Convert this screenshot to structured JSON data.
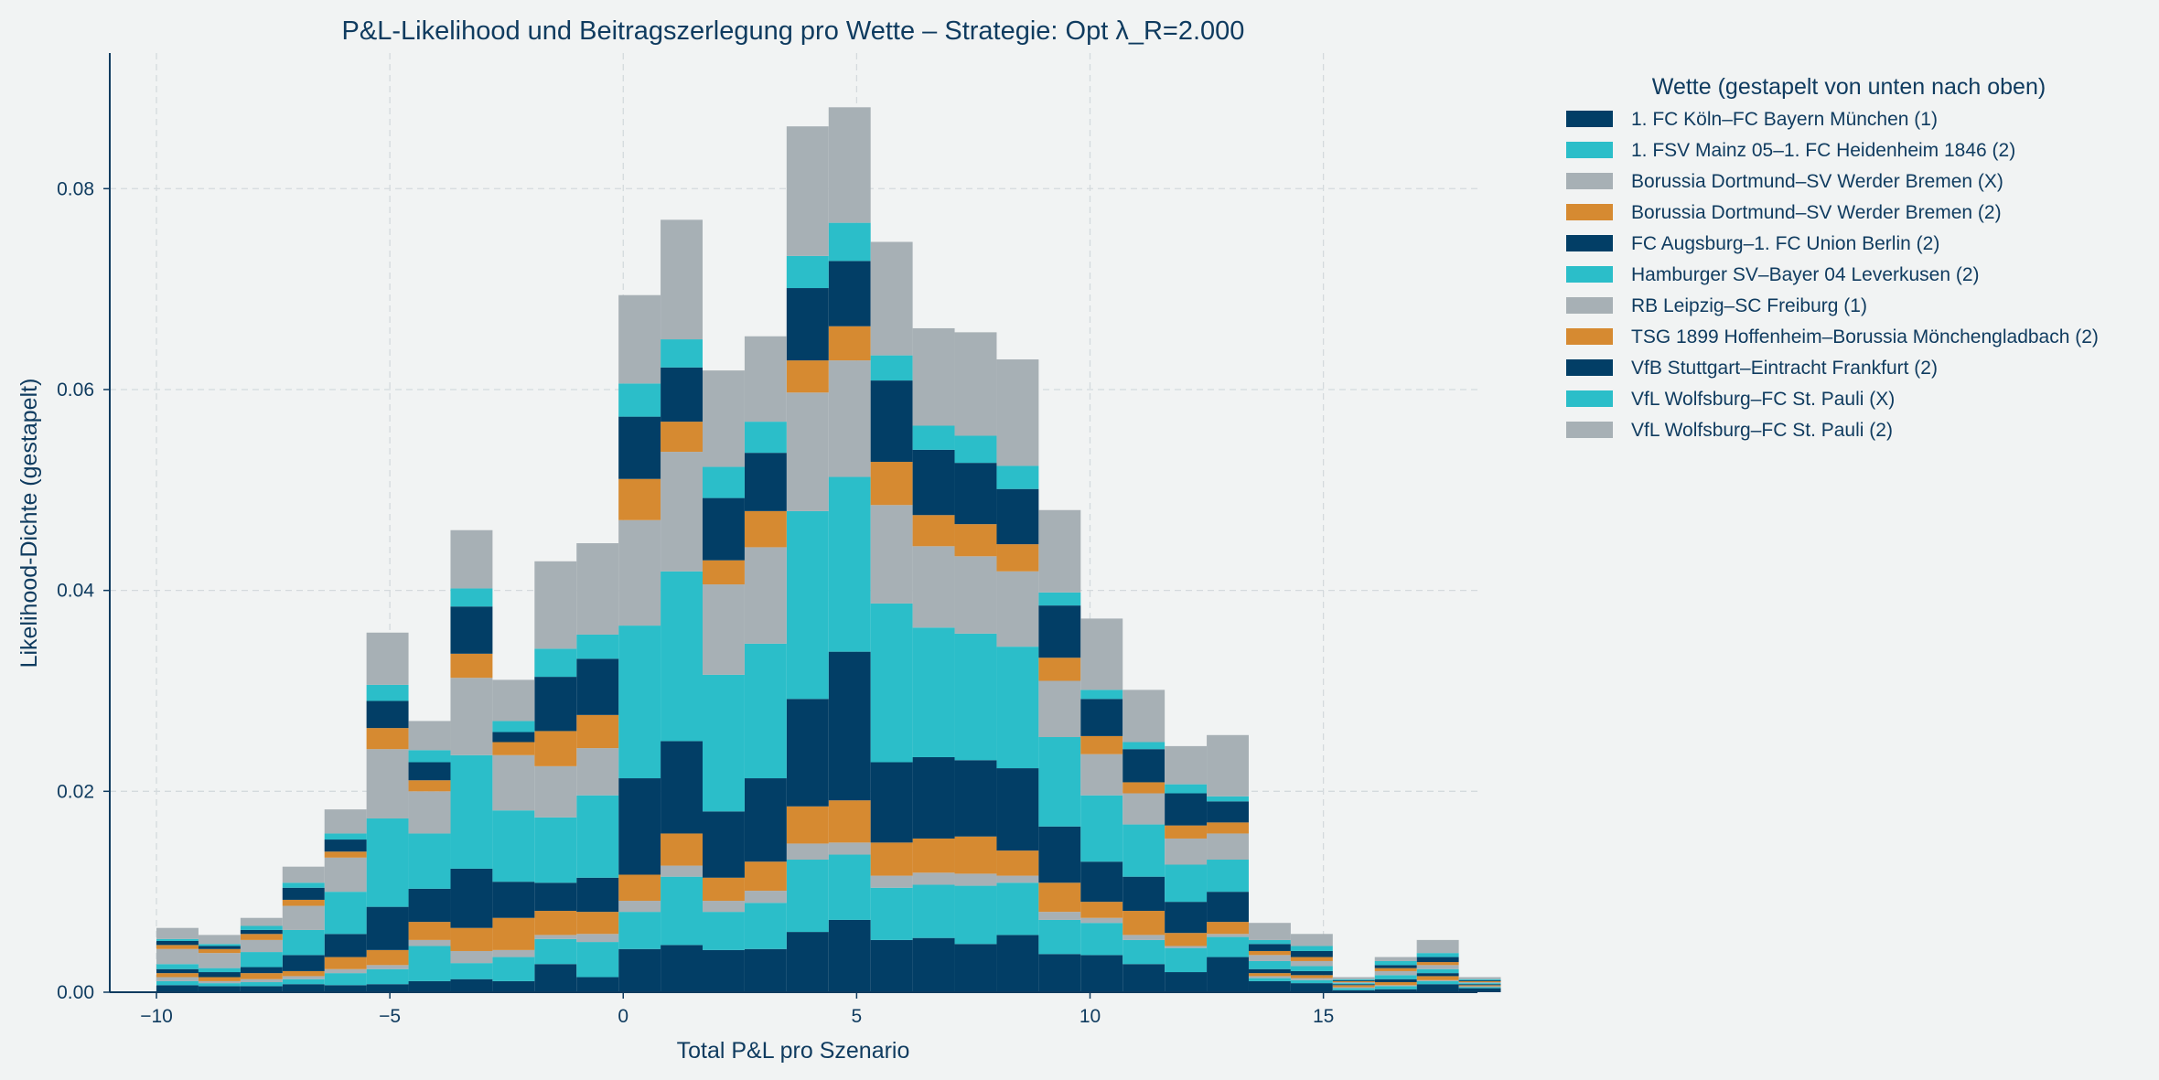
{
  "chart_data": {
    "type": "bar",
    "stacked": true,
    "title": "P&L-Likelihood und Beitragszerlegung pro Wette – Strategie: Opt λ_R=2.000",
    "xlabel": "Total P&L pro Szenario",
    "ylabel": "Likelihood-Dichte (gestapelt)",
    "xlim": [
      -11,
      18.3
    ],
    "ylim": [
      0,
      0.0935
    ],
    "xticks": [
      -10,
      -5,
      0,
      5,
      10,
      15
    ],
    "xtick_labels": [
      "−10",
      "−5",
      "0",
      "5",
      "10",
      "15"
    ],
    "yticks": [
      0.0,
      0.02,
      0.04,
      0.06,
      0.08
    ],
    "ytick_labels": [
      "0.00",
      "0.02",
      "0.04",
      "0.06",
      "0.08"
    ],
    "grid": true,
    "legend_title": "Wette (gestapelt von unten nach oben)",
    "legend_position": "outside-right",
    "bin_width": 0.9,
    "bin_edges_start": -10,
    "series": [
      {
        "name": "1. FC Köln–FC Bayern München (1)",
        "color": "#023e66",
        "values": [
          0.0007,
          0.0006,
          0.0006,
          0.0008,
          0.0007,
          0.0008,
          0.0011,
          0.0013,
          0.0011,
          0.0028,
          0.0015,
          0.0043,
          0.0047,
          0.0042,
          0.0043,
          0.006,
          0.0072,
          0.0052,
          0.0054,
          0.0048,
          0.0057,
          0.0038,
          0.0037,
          0.0028,
          0.002,
          0.0035,
          0.0011,
          0.0009,
          0.0002,
          0.0003,
          0.0008,
          0.0004
        ]
      },
      {
        "name": "1. FSV Mainz 05–1. FC Heidenheim 1846 (2)",
        "color": "#2bbec9",
        "values": [
          0.0004,
          0.0003,
          0.0004,
          0.0005,
          0.0012,
          0.0015,
          0.0035,
          0.0016,
          0.0024,
          0.0025,
          0.0035,
          0.0037,
          0.0068,
          0.0038,
          0.0046,
          0.0072,
          0.0065,
          0.0052,
          0.0053,
          0.0058,
          0.0052,
          0.0034,
          0.0032,
          0.0024,
          0.0024,
          0.002,
          0.0003,
          0.0003,
          0.0002,
          0.0003,
          0.0003,
          0.0001
        ]
      },
      {
        "name": "Borussia Dortmund–SV Werder Bremen (X)",
        "color": "#a7b0b5",
        "values": [
          0.0004,
          0.0002,
          0.0003,
          0.0003,
          0.0004,
          0.0004,
          0.0006,
          0.0012,
          0.0007,
          0.0004,
          0.0008,
          0.0011,
          0.0011,
          0.0011,
          0.0012,
          0.0016,
          0.0012,
          0.0012,
          0.0012,
          0.0012,
          0.0007,
          0.0008,
          0.0005,
          0.0005,
          0.0002,
          0.0003,
          0.0002,
          0.0002,
          0.0001,
          0.0001,
          0.0001,
          0.0001
        ]
      },
      {
        "name": "Borussia Dortmund–SV Werder Bremen (2)",
        "color": "#d68a31",
        "values": [
          0.0004,
          0.0004,
          0.0006,
          0.0005,
          0.0012,
          0.0015,
          0.0018,
          0.0023,
          0.0032,
          0.0024,
          0.0022,
          0.0026,
          0.0032,
          0.0023,
          0.0029,
          0.0037,
          0.0042,
          0.0033,
          0.0034,
          0.0037,
          0.0025,
          0.0029,
          0.0016,
          0.0024,
          0.0013,
          0.0012,
          0.0003,
          0.0003,
          0.0002,
          0.0003,
          0.0004,
          0.0001
        ]
      },
      {
        "name": "FC Augsburg–1. FC Union Berlin (2)",
        "color": "#023e66",
        "values": [
          0.0004,
          0.0005,
          0.0006,
          0.0016,
          0.0023,
          0.0043,
          0.0033,
          0.0059,
          0.0036,
          0.0028,
          0.0034,
          0.0096,
          0.0092,
          0.0066,
          0.0083,
          0.0107,
          0.0148,
          0.008,
          0.0081,
          0.0076,
          0.0082,
          0.0056,
          0.004,
          0.0034,
          0.0031,
          0.003,
          0.0004,
          0.0004,
          0.0001,
          0.0003,
          0.0003,
          0.0001
        ]
      },
      {
        "name": "Hamburger SV–Bayer 04 Leverkusen (2)",
        "color": "#2bbec9",
        "values": [
          0.0005,
          0.0004,
          0.0015,
          0.0025,
          0.0042,
          0.0088,
          0.0055,
          0.0113,
          0.0071,
          0.0065,
          0.0082,
          0.0152,
          0.0169,
          0.0136,
          0.0134,
          0.0187,
          0.0174,
          0.0158,
          0.0129,
          0.0126,
          0.0121,
          0.0089,
          0.0066,
          0.0052,
          0.0037,
          0.0032,
          0.0008,
          0.0005,
          0.0001,
          0.0004,
          0.0004,
          0.0001
        ]
      },
      {
        "name": "RB Leipzig–SC Freiburg (1)",
        "color": "#a7b0b5",
        "values": [
          0.0015,
          0.0015,
          0.0012,
          0.0024,
          0.0034,
          0.0069,
          0.0042,
          0.0077,
          0.0055,
          0.0051,
          0.0047,
          0.0105,
          0.0119,
          0.009,
          0.0096,
          0.0118,
          0.0116,
          0.0098,
          0.0081,
          0.0077,
          0.0075,
          0.0056,
          0.0041,
          0.0031,
          0.0026,
          0.0026,
          0.0006,
          0.0005,
          0.0001,
          0.0004,
          0.0004,
          0.0001
        ]
      },
      {
        "name": "TSG 1899 Hoffenheim–Borussia Mönchengladbach (2)",
        "color": "#d68a31",
        "values": [
          0.0004,
          0.0004,
          0.0006,
          0.0006,
          0.0006,
          0.0021,
          0.0011,
          0.0024,
          0.0013,
          0.0035,
          0.0033,
          0.0041,
          0.003,
          0.0024,
          0.0036,
          0.0032,
          0.0034,
          0.0043,
          0.0031,
          0.0032,
          0.0027,
          0.0023,
          0.0018,
          0.0011,
          0.0013,
          0.0011,
          0.0004,
          0.0004,
          0.0001,
          0.0003,
          0.0003,
          0.0001
        ]
      },
      {
        "name": "VfB Stuttgart–Eintracht Frankfurt (2)",
        "color": "#023e66",
        "values": [
          0.0004,
          0.0003,
          0.0004,
          0.0012,
          0.0012,
          0.0027,
          0.0018,
          0.0047,
          0.001,
          0.0054,
          0.0056,
          0.0062,
          0.0054,
          0.0062,
          0.0058,
          0.0072,
          0.0065,
          0.0081,
          0.0065,
          0.0061,
          0.0055,
          0.0052,
          0.0037,
          0.0033,
          0.0032,
          0.0021,
          0.0007,
          0.0006,
          0.0001,
          0.0003,
          0.0005,
          0.0001
        ]
      },
      {
        "name": "VfL Wolfsburg–FC St. Pauli (X)",
        "color": "#2bbec9",
        "values": [
          0.0002,
          0.0002,
          0.0004,
          0.0005,
          0.0006,
          0.0016,
          0.0012,
          0.0018,
          0.0011,
          0.0028,
          0.0024,
          0.0033,
          0.0028,
          0.0031,
          0.0031,
          0.0032,
          0.0038,
          0.0025,
          0.0024,
          0.0027,
          0.0023,
          0.0013,
          0.0009,
          0.0007,
          0.0009,
          0.0005,
          0.0004,
          0.0005,
          0.0001,
          0.0004,
          0.0004,
          0.0001
        ]
      },
      {
        "name": "VfL Wolfsburg–FC St. Pauli (2)",
        "color": "#a7b0b5",
        "values": [
          0.0011,
          0.0009,
          0.0008,
          0.0016,
          0.0024,
          0.0052,
          0.0029,
          0.0058,
          0.0041,
          0.0087,
          0.0091,
          0.0088,
          0.0119,
          0.0096,
          0.0085,
          0.0129,
          0.0115,
          0.0113,
          0.0097,
          0.0103,
          0.0106,
          0.0082,
          0.0071,
          0.0052,
          0.0038,
          0.0061,
          0.0017,
          0.0012,
          0.0002,
          0.0004,
          0.0013,
          0.0002
        ]
      }
    ]
  }
}
